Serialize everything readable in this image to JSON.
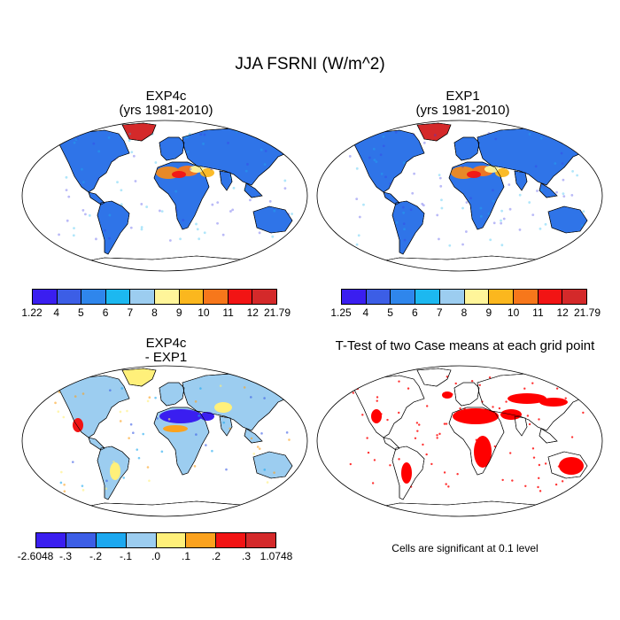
{
  "title": "JJA FSRNI (W/m^2)",
  "panels": [
    {
      "id": "exp4c",
      "title_line1": "EXP4c",
      "title_line2": "(yrs 1981-2010)"
    },
    {
      "id": "exp1",
      "title_line1": "EXP1",
      "title_line2": "(yrs 1981-2010)"
    },
    {
      "id": "diff",
      "title_line1": "EXP4c",
      "title_line2": "- EXP1"
    },
    {
      "id": "ttest",
      "title_line1": "T-Test of two Case means at each grid point"
    }
  ],
  "colorbars": [
    {
      "id": "cb-exp4c",
      "colors": [
        "#3a1ef0",
        "#3c5ee6",
        "#2f86ec",
        "#1cb8f0",
        "#9ccdf0",
        "#fff59a",
        "#fbb71e",
        "#f7771b",
        "#f21414",
        "#d4292a"
      ],
      "labels": [
        "1.22",
        "4",
        "5",
        "6",
        "7",
        "8",
        "9",
        "10",
        "11",
        "12",
        "21.79"
      ]
    },
    {
      "id": "cb-exp1",
      "colors": [
        "#3a1ef0",
        "#3c5ee6",
        "#2f86ec",
        "#1cb8f0",
        "#9ccdf0",
        "#fff59a",
        "#fbb71e",
        "#f7771b",
        "#f21414",
        "#d4292a"
      ],
      "labels": [
        "1.25",
        "4",
        "5",
        "6",
        "7",
        "8",
        "9",
        "10",
        "11",
        "12",
        "21.79"
      ]
    },
    {
      "id": "cb-diff",
      "colors": [
        "#3a1ef0",
        "#3c5ee6",
        "#1ca8f0",
        "#9ccdf0",
        "#fff07a",
        "#fba21e",
        "#f21414",
        "#d4292a"
      ],
      "labels": [
        "-2.6048",
        "-.3",
        "-.2",
        "-.1",
        ".0",
        ".1",
        ".2",
        ".3",
        "1.0748"
      ]
    }
  ],
  "note": "Cells are significant at 0.1 level",
  "colors": {
    "land_base": "#2f74e8",
    "land_dark": "#3a3ae8",
    "sahara_hot": "#f28a1e",
    "greenland": "#d4292a",
    "diff_base": "#9ccdf0",
    "diff_neg": "#3a1ef0",
    "diff_pos": "#f21414",
    "sig": "#ff0000"
  }
}
